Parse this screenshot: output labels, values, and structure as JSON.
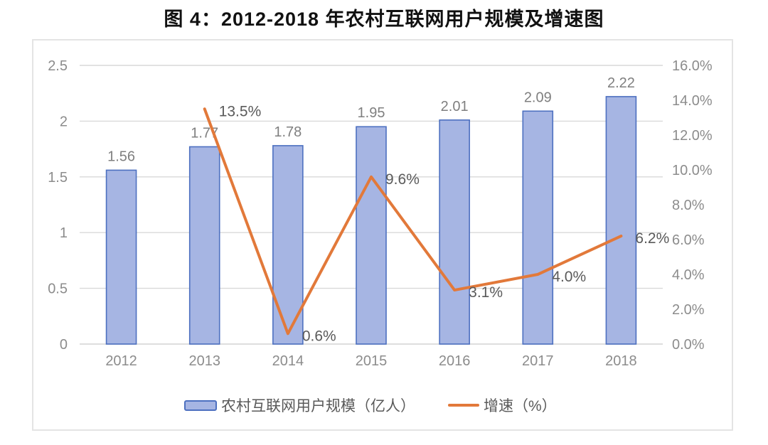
{
  "page": {
    "title": "图 4：2012-2018 年农村互联网用户规模及增速图"
  },
  "legend": {
    "bar_label": "农村互联网用户规模（亿人）",
    "line_label": "增速（%）"
  },
  "colors": {
    "bar_fill": "#a6b5e3",
    "bar_border": "#4d70c0",
    "line": "#e2793a",
    "grid": "#d9d9d9",
    "axis_text": "#8c8c8c",
    "bar_label_text": "#7f7f7f",
    "line_label_text": "#5a5a5a",
    "title_text": "#111111",
    "frame_border": "#e4e4e4"
  },
  "chart_data": {
    "type": "bar",
    "subtype": "combo-bar-line-dual-axis",
    "title": "图 4：2012-2018 年农村互联网用户规模及增速图",
    "categories": [
      "2012",
      "2013",
      "2014",
      "2015",
      "2016",
      "2017",
      "2018"
    ],
    "series": [
      {
        "name": "农村互联网用户规模（亿人）",
        "type": "bar",
        "axis": "left",
        "values": [
          1.56,
          1.77,
          1.78,
          1.95,
          2.01,
          2.09,
          2.22
        ],
        "labels": [
          "1.56",
          "1.77",
          "1.78",
          "1.95",
          "2.01",
          "2.09",
          "2.22"
        ]
      },
      {
        "name": "增速（%）",
        "type": "line",
        "axis": "right",
        "values": [
          null,
          13.5,
          0.6,
          9.6,
          3.1,
          4.0,
          6.2
        ],
        "labels": [
          null,
          "13.5%",
          "0.6%",
          "9.6%",
          "3.1%",
          "4.0%",
          "6.2%"
        ]
      }
    ],
    "left_axis": {
      "min": 0,
      "max": 2.5,
      "ticks": [
        "0",
        "0.5",
        "1",
        "1.5",
        "2",
        "2.5"
      ]
    },
    "right_axis": {
      "min": 0,
      "max": 16,
      "ticks": [
        "0.0%",
        "2.0%",
        "4.0%",
        "6.0%",
        "8.0%",
        "10.0%",
        "12.0%",
        "14.0%",
        "16.0%"
      ]
    },
    "grid": true,
    "legend_position": "bottom",
    "xlabel": "",
    "ylabel_left": "",
    "ylabel_right": ""
  }
}
